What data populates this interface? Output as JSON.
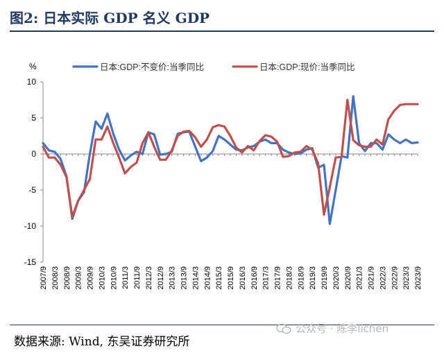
{
  "figure": {
    "title": "图2:  日本实际 GDP  名义 GDP",
    "source": "数据来源:  Wind,  东吴证券研究所",
    "watermark": "公众号 · 陈李lichen"
  },
  "chart_data": {
    "type": "line",
    "title": "",
    "ylabel": "%",
    "xlabel": "",
    "ylim": [
      -15,
      10
    ],
    "yticks": [
      10,
      5,
      0,
      -5,
      -10,
      -15
    ],
    "grid": false,
    "legend_position": "top",
    "colors": [
      "#4472c4",
      "#c0504d"
    ],
    "categories": [
      "2007/9",
      "2007/12",
      "2008/3",
      "2008/6",
      "2008/9",
      "2008/12",
      "2009/3",
      "2009/6",
      "2009/9",
      "2009/12",
      "2010/3",
      "2010/6",
      "2010/9",
      "2010/12",
      "2011/3",
      "2011/6",
      "2011/9",
      "2011/12",
      "2012/3",
      "2012/6",
      "2012/9",
      "2012/12",
      "2013/3",
      "2013/6",
      "2013/9",
      "2013/12",
      "2014/3",
      "2014/6",
      "2014/9",
      "2014/12",
      "2015/3",
      "2015/6",
      "2015/9",
      "2015/12",
      "2016/3",
      "2016/6",
      "2016/9",
      "2016/12",
      "2017/3",
      "2017/6",
      "2017/9",
      "2017/12",
      "2018/3",
      "2018/6",
      "2018/9",
      "2018/12",
      "2019/3",
      "2019/6",
      "2019/9",
      "2019/12",
      "2020/3",
      "2020/6",
      "2020/9",
      "2020/12",
      "2021/3",
      "2021/6",
      "2021/9",
      "2021/12",
      "2022/3",
      "2022/6",
      "2022/9",
      "2022/12",
      "2023/3",
      "2023/6",
      "2023/9"
    ],
    "tick_labels": [
      "2007/9",
      "2008/3",
      "2008/9",
      "2009/3",
      "2009/9",
      "2010/3",
      "2010/9",
      "2011/3",
      "2011/9",
      "2012/3",
      "2012/9",
      "2013/3",
      "2013/9",
      "2014/3",
      "2014/9",
      "2015/3",
      "2015/9",
      "2016/3",
      "2016/9",
      "2017/3",
      "2017/9",
      "2018/3",
      "2018/9",
      "2019/3",
      "2019/9",
      "2020/3",
      "2020/9",
      "2021/3",
      "2021/9",
      "2022/3",
      "2022/9",
      "2023/3",
      "2023/9"
    ],
    "series": [
      {
        "name": "日本:GDP:不变价:当季同比",
        "values": [
          1.5,
          0.5,
          0.3,
          -0.7,
          -3.1,
          -9.0,
          -6.5,
          -5.3,
          0.0,
          4.5,
          3.5,
          5.6,
          2.8,
          0.6,
          -0.9,
          -0.2,
          0.3,
          0.0,
          3.0,
          2.7,
          -0.1,
          0.0,
          0.3,
          2.8,
          3.0,
          3.1,
          1.0,
          -1.0,
          -0.5,
          0.4,
          2.5,
          2.0,
          1.3,
          0.6,
          0.5,
          0.9,
          1.1,
          1.7,
          2.0,
          1.5,
          1.5,
          0.6,
          0.2,
          0.0,
          0.1,
          0.6,
          0.8,
          -1.9,
          -1.5,
          -9.7,
          -5.0,
          -0.3,
          -0.5,
          8.0,
          1.5,
          0.4,
          1.5,
          1.5,
          0.6,
          2.7,
          2.0,
          1.5,
          2.0,
          1.5,
          1.6
        ]
      },
      {
        "name": "日本:GDP:现价:当季同比",
        "values": [
          1.0,
          -0.5,
          -0.5,
          -1.5,
          -3.2,
          -8.7,
          -6.5,
          -5.0,
          -3.5,
          2.0,
          2.0,
          3.8,
          1.5,
          -0.5,
          -2.7,
          -1.8,
          -1.2,
          1.5,
          3.0,
          1.0,
          -0.8,
          -0.8,
          0.5,
          2.5,
          3.1,
          3.2,
          2.3,
          1.0,
          2.0,
          3.7,
          4.0,
          3.8,
          2.5,
          0.9,
          0.2,
          1.1,
          0.5,
          1.8,
          2.6,
          2.4,
          1.7,
          -0.4,
          -0.3,
          0.2,
          0.3,
          1.1,
          0.6,
          -1.3,
          -8.4,
          -4.6,
          -0.5,
          -0.4,
          7.5,
          1.9,
          1.2,
          1.0,
          1.0,
          2.0,
          1.3,
          4.8,
          6.0,
          6.8,
          6.9,
          6.9,
          6.9
        ]
      }
    ]
  }
}
